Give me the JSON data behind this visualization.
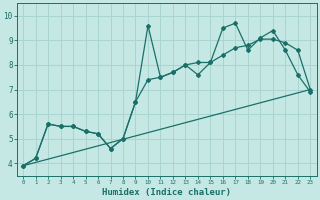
{
  "bg_color": "#c5e8e5",
  "grid_color": "#aad4d0",
  "line_color": "#1a7068",
  "xlabel": "Humidex (Indice chaleur)",
  "xlabel_fontsize": 6.5,
  "xtick_labels": [
    "0",
    "1",
    "2",
    "3",
    "4",
    "5",
    "6",
    "7",
    "8",
    "9",
    "10",
    "11",
    "12",
    "13",
    "14",
    "15",
    "16",
    "17",
    "18",
    "19",
    "20",
    "21",
    "22",
    "23"
  ],
  "ytick_labels": [
    "4",
    "5",
    "6",
    "7",
    "8",
    "9",
    "10"
  ],
  "yticks": [
    4,
    5,
    6,
    7,
    8,
    9,
    10
  ],
  "ylim": [
    3.5,
    10.5
  ],
  "xlim": [
    -0.5,
    23.5
  ],
  "line1_x": [
    0,
    1,
    2,
    3,
    4,
    5,
    6,
    7,
    8,
    9,
    10,
    11,
    12,
    13,
    14,
    15,
    16,
    17,
    18,
    19,
    20,
    21,
    22,
    23
  ],
  "line1_y": [
    3.9,
    4.2,
    5.6,
    5.5,
    5.5,
    5.3,
    5.2,
    4.6,
    5.0,
    6.5,
    9.6,
    7.5,
    7.7,
    8.0,
    7.6,
    8.1,
    9.5,
    9.7,
    8.6,
    9.1,
    9.4,
    8.6,
    7.6,
    6.9
  ],
  "line2_x": [
    0,
    1,
    2,
    3,
    4,
    5,
    6,
    7,
    8,
    9,
    10,
    11,
    12,
    13,
    14,
    15,
    16,
    17,
    18,
    19,
    20,
    21,
    22,
    23
  ],
  "line2_y": [
    3.9,
    4.2,
    5.6,
    5.5,
    5.5,
    5.3,
    5.2,
    4.6,
    5.0,
    6.5,
    7.4,
    7.5,
    7.7,
    8.0,
    8.1,
    8.1,
    8.4,
    8.7,
    8.8,
    9.05,
    9.05,
    8.9,
    8.6,
    7.0
  ],
  "line3_x": [
    0,
    23
  ],
  "line3_y": [
    3.9,
    7.0
  ]
}
